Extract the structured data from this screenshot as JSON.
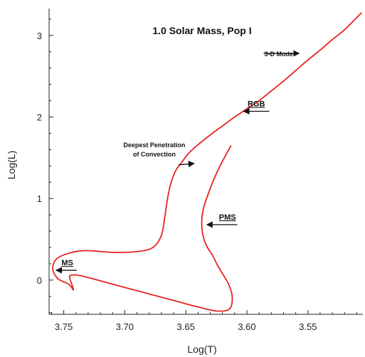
{
  "chart_data": {
    "type": "line",
    "title": "1.0 Solar Mass, Pop I",
    "xlabel": "Log(T)",
    "ylabel": "Log(L)",
    "xlim": [
      3.762,
      3.505
    ],
    "ylim": [
      -0.42,
      3.33
    ],
    "x_reversed": true,
    "grid": false,
    "xticks": [
      3.75,
      3.7,
      3.65,
      3.6,
      3.55
    ],
    "xtick_labels": [
      "3.75",
      "3.70",
      "3.65",
      "3.60",
      "3.55"
    ],
    "yticks": [
      0,
      1,
      2,
      3
    ],
    "ytick_labels": [
      "0",
      "1",
      "2",
      "3"
    ],
    "series": [
      {
        "color": "#e8231f",
        "x": [
          3.613,
          3.622,
          3.628,
          3.633,
          3.636,
          3.637,
          3.636,
          3.633,
          3.628,
          3.624,
          3.62,
          3.615,
          3.612,
          3.614,
          3.624,
          3.64,
          3.66,
          3.685,
          3.71,
          3.735,
          3.744,
          3.745,
          3.742,
          3.746,
          3.755,
          3.759,
          3.754,
          3.735,
          3.71,
          3.69,
          3.677,
          3.67,
          3.667,
          3.665,
          3.662,
          3.658,
          3.653,
          3.648,
          3.64,
          3.63,
          3.62,
          3.61,
          3.6,
          3.59,
          3.58,
          3.57,
          3.56,
          3.55,
          3.54,
          3.53,
          3.52,
          3.506
        ],
        "y": [
          1.65,
          1.4,
          1.2,
          1.0,
          0.85,
          0.7,
          0.55,
          0.42,
          0.3,
          0.18,
          0.08,
          -0.05,
          -0.2,
          -0.35,
          -0.38,
          -0.33,
          -0.25,
          -0.15,
          -0.05,
          0.05,
          0.06,
          0.02,
          -0.12,
          -0.05,
          0.02,
          0.15,
          0.28,
          0.36,
          0.34,
          0.35,
          0.4,
          0.55,
          0.8,
          1.0,
          1.2,
          1.35,
          1.45,
          1.55,
          1.66,
          1.78,
          1.89,
          2.0,
          2.1,
          2.2,
          2.32,
          2.44,
          2.57,
          2.7,
          2.82,
          2.95,
          3.07,
          3.28
        ]
      }
    ],
    "annotations": [
      {
        "text": "3-D Model",
        "x": 3.556,
        "y": 2.78,
        "arrow": true
      },
      {
        "text": "RGB",
        "x": 3.605,
        "y": 2.07,
        "arrow": true
      },
      {
        "text": "Deepest Penetration",
        "x": 3.642,
        "y": 1.43,
        "arrow": true
      },
      {
        "text": "of Convection",
        "x": 3.642,
        "y": 1.43,
        "arrow": false
      },
      {
        "text": "PMS",
        "x": 3.634,
        "y": 0.68,
        "arrow": true
      },
      {
        "text": "MS",
        "x": 3.758,
        "y": 0.12,
        "arrow": true
      }
    ]
  }
}
